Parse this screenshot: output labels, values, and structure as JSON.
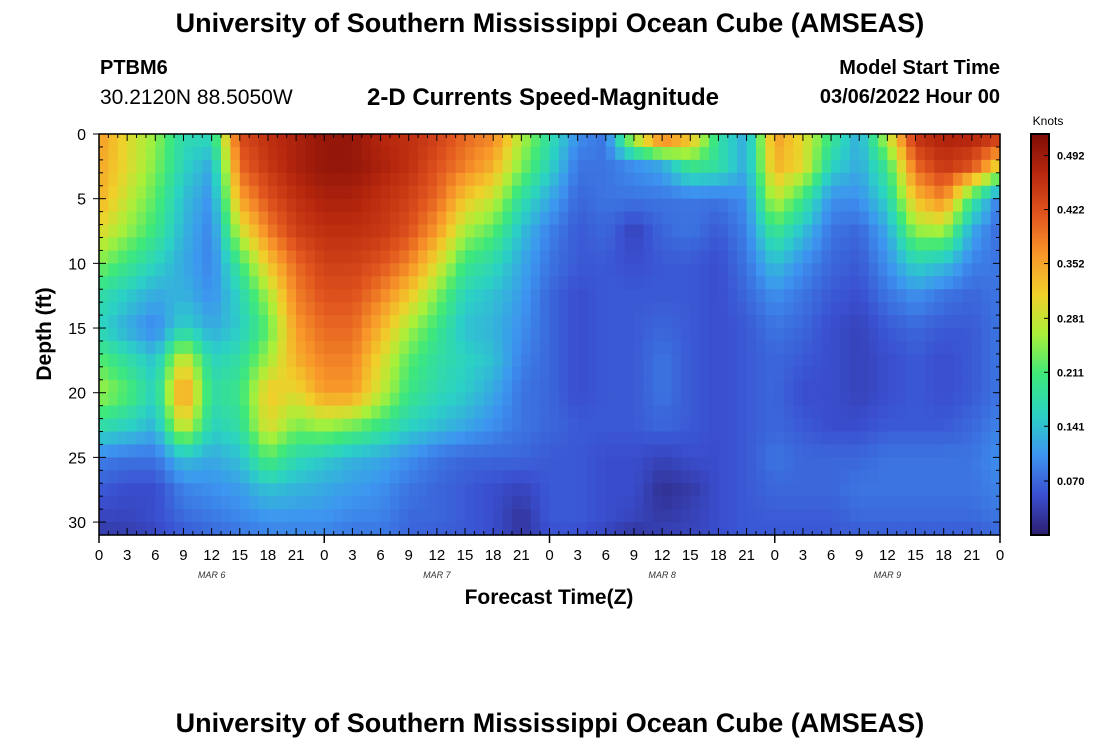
{
  "header": {
    "title": "University of Southern Mississippi Ocean Cube (AMSEAS)",
    "station": "PTBM6",
    "coordinates": "30.2120N  88.5050W",
    "product": "2-D Currents Speed-Magnitude",
    "model_start_label": "Model Start Time",
    "model_start_value": "03/06/2022 Hour 00"
  },
  "footer": {
    "title": "University of Southern Mississippi Ocean Cube (AMSEAS)"
  },
  "chart_data": {
    "type": "heatmap",
    "xlabel": "Forecast Time(Z)",
    "ylabel": "Depth (ft)",
    "x_tick_labels": [
      "0",
      "3",
      "6",
      "9",
      "12",
      "15",
      "18",
      "21",
      "0",
      "3",
      "6",
      "9",
      "12",
      "15",
      "18",
      "21",
      "0",
      "3",
      "6",
      "9",
      "12",
      "15",
      "18",
      "21",
      "0",
      "3",
      "6",
      "9",
      "12",
      "15",
      "18",
      "21",
      "0"
    ],
    "date_labels": [
      "MAR 6",
      "MAR 7",
      "MAR 8",
      "MAR 9"
    ],
    "xlim_hours": [
      0,
      96
    ],
    "y_ticks": [
      "0",
      "5",
      "10",
      "15",
      "20",
      "25",
      "30"
    ],
    "ylim_ft": [
      0,
      31
    ],
    "colorbar": {
      "unit": "Knots",
      "ticks": [
        "0.492",
        "0.422",
        "0.352",
        "0.281",
        "0.211",
        "0.141",
        "0.070"
      ],
      "range": [
        0,
        0.52
      ],
      "colors": [
        "#2c1e6e",
        "#3a4fd0",
        "#3d95f0",
        "#2bd2c4",
        "#3ee87a",
        "#a8f03a",
        "#f0d02a",
        "#f8962a",
        "#e0541e",
        "#b8280e",
        "#7e0c06"
      ]
    },
    "depths_ft": [
      0,
      2.5,
      5,
      7.5,
      10,
      12.5,
      15,
      17.5,
      20,
      22.5,
      25,
      27.5,
      30,
      31
    ],
    "hours": [
      0,
      3,
      6,
      9,
      12,
      15,
      18,
      21,
      24,
      27,
      30,
      33,
      36,
      39,
      42,
      45,
      48,
      51,
      54,
      57,
      60,
      63,
      66,
      69,
      72,
      75,
      78,
      81,
      84,
      87,
      90,
      93,
      96
    ],
    "values": [
      [
        0.36,
        0.3,
        0.25,
        0.17,
        0.17,
        0.43,
        0.46,
        0.48,
        0.5,
        0.5,
        0.47,
        0.46,
        0.44,
        0.4,
        0.38,
        0.27,
        0.18,
        0.1,
        0.08,
        0.3,
        0.43,
        0.35,
        0.18,
        0.12,
        0.36,
        0.3,
        0.2,
        0.12,
        0.28,
        0.46,
        0.48,
        0.48,
        0.46
      ],
      [
        0.35,
        0.3,
        0.24,
        0.16,
        0.12,
        0.4,
        0.45,
        0.48,
        0.5,
        0.5,
        0.48,
        0.46,
        0.42,
        0.38,
        0.34,
        0.24,
        0.16,
        0.08,
        0.08,
        0.1,
        0.12,
        0.2,
        0.18,
        0.12,
        0.34,
        0.3,
        0.16,
        0.12,
        0.2,
        0.4,
        0.45,
        0.42,
        0.3
      ],
      [
        0.34,
        0.28,
        0.22,
        0.14,
        0.1,
        0.35,
        0.42,
        0.46,
        0.48,
        0.48,
        0.46,
        0.44,
        0.4,
        0.32,
        0.28,
        0.18,
        0.12,
        0.07,
        0.08,
        0.08,
        0.08,
        0.08,
        0.08,
        0.1,
        0.28,
        0.2,
        0.1,
        0.1,
        0.16,
        0.33,
        0.38,
        0.2,
        0.08
      ],
      [
        0.3,
        0.25,
        0.2,
        0.13,
        0.09,
        0.28,
        0.38,
        0.44,
        0.46,
        0.46,
        0.45,
        0.42,
        0.36,
        0.26,
        0.22,
        0.14,
        0.09,
        0.06,
        0.07,
        0.04,
        0.07,
        0.08,
        0.06,
        0.09,
        0.2,
        0.14,
        0.08,
        0.07,
        0.12,
        0.25,
        0.26,
        0.12,
        0.07
      ],
      [
        0.24,
        0.2,
        0.16,
        0.12,
        0.09,
        0.2,
        0.32,
        0.4,
        0.44,
        0.44,
        0.42,
        0.38,
        0.3,
        0.2,
        0.17,
        0.12,
        0.08,
        0.06,
        0.06,
        0.05,
        0.06,
        0.06,
        0.05,
        0.08,
        0.14,
        0.1,
        0.07,
        0.06,
        0.1,
        0.16,
        0.14,
        0.09,
        0.08
      ],
      [
        0.18,
        0.15,
        0.12,
        0.13,
        0.1,
        0.16,
        0.26,
        0.38,
        0.42,
        0.42,
        0.38,
        0.32,
        0.24,
        0.16,
        0.14,
        0.11,
        0.07,
        0.05,
        0.06,
        0.06,
        0.06,
        0.06,
        0.05,
        0.07,
        0.1,
        0.08,
        0.06,
        0.05,
        0.08,
        0.1,
        0.08,
        0.07,
        0.08
      ],
      [
        0.16,
        0.12,
        0.09,
        0.16,
        0.12,
        0.15,
        0.22,
        0.36,
        0.4,
        0.4,
        0.34,
        0.26,
        0.2,
        0.14,
        0.13,
        0.1,
        0.07,
        0.05,
        0.06,
        0.06,
        0.07,
        0.06,
        0.05,
        0.06,
        0.08,
        0.07,
        0.05,
        0.04,
        0.06,
        0.07,
        0.06,
        0.06,
        0.08
      ],
      [
        0.22,
        0.18,
        0.14,
        0.3,
        0.16,
        0.18,
        0.26,
        0.34,
        0.38,
        0.38,
        0.3,
        0.22,
        0.18,
        0.16,
        0.14,
        0.09,
        0.07,
        0.05,
        0.06,
        0.06,
        0.08,
        0.06,
        0.05,
        0.06,
        0.07,
        0.06,
        0.05,
        0.04,
        0.05,
        0.06,
        0.05,
        0.06,
        0.08
      ],
      [
        0.26,
        0.22,
        0.16,
        0.38,
        0.18,
        0.2,
        0.32,
        0.3,
        0.36,
        0.36,
        0.28,
        0.2,
        0.17,
        0.15,
        0.12,
        0.08,
        0.07,
        0.05,
        0.06,
        0.06,
        0.08,
        0.06,
        0.05,
        0.06,
        0.07,
        0.05,
        0.05,
        0.04,
        0.05,
        0.06,
        0.05,
        0.06,
        0.08
      ],
      [
        0.18,
        0.16,
        0.13,
        0.3,
        0.16,
        0.18,
        0.3,
        0.24,
        0.26,
        0.24,
        0.2,
        0.16,
        0.14,
        0.12,
        0.1,
        0.08,
        0.07,
        0.06,
        0.06,
        0.06,
        0.07,
        0.06,
        0.05,
        0.06,
        0.07,
        0.06,
        0.05,
        0.05,
        0.06,
        0.06,
        0.06,
        0.07,
        0.09
      ],
      [
        0.09,
        0.08,
        0.08,
        0.14,
        0.12,
        0.14,
        0.22,
        0.17,
        0.15,
        0.13,
        0.12,
        0.1,
        0.08,
        0.07,
        0.07,
        0.07,
        0.06,
        0.06,
        0.05,
        0.05,
        0.04,
        0.05,
        0.05,
        0.06,
        0.08,
        0.07,
        0.07,
        0.07,
        0.08,
        0.08,
        0.08,
        0.08,
        0.1
      ],
      [
        0.06,
        0.05,
        0.05,
        0.09,
        0.1,
        0.11,
        0.14,
        0.13,
        0.12,
        0.11,
        0.1,
        0.08,
        0.07,
        0.06,
        0.05,
        0.04,
        0.06,
        0.06,
        0.05,
        0.05,
        0.02,
        0.03,
        0.05,
        0.06,
        0.07,
        0.07,
        0.07,
        0.08,
        0.08,
        0.08,
        0.08,
        0.08,
        0.09
      ],
      [
        0.04,
        0.04,
        0.05,
        0.07,
        0.08,
        0.09,
        0.1,
        0.1,
        0.1,
        0.09,
        0.09,
        0.07,
        0.07,
        0.06,
        0.05,
        0.02,
        0.06,
        0.06,
        0.05,
        0.04,
        0.03,
        0.04,
        0.05,
        0.06,
        0.06,
        0.06,
        0.06,
        0.07,
        0.07,
        0.07,
        0.07,
        0.07,
        0.08
      ],
      [
        0.03,
        0.03,
        0.04,
        0.06,
        0.07,
        0.08,
        0.09,
        0.09,
        0.09,
        0.08,
        0.08,
        0.07,
        0.06,
        0.06,
        0.05,
        0.03,
        0.05,
        0.05,
        0.04,
        0.02,
        0.04,
        0.04,
        0.05,
        0.06,
        0.06,
        0.06,
        0.06,
        0.06,
        0.06,
        0.06,
        0.06,
        0.06,
        0.07
      ]
    ]
  }
}
